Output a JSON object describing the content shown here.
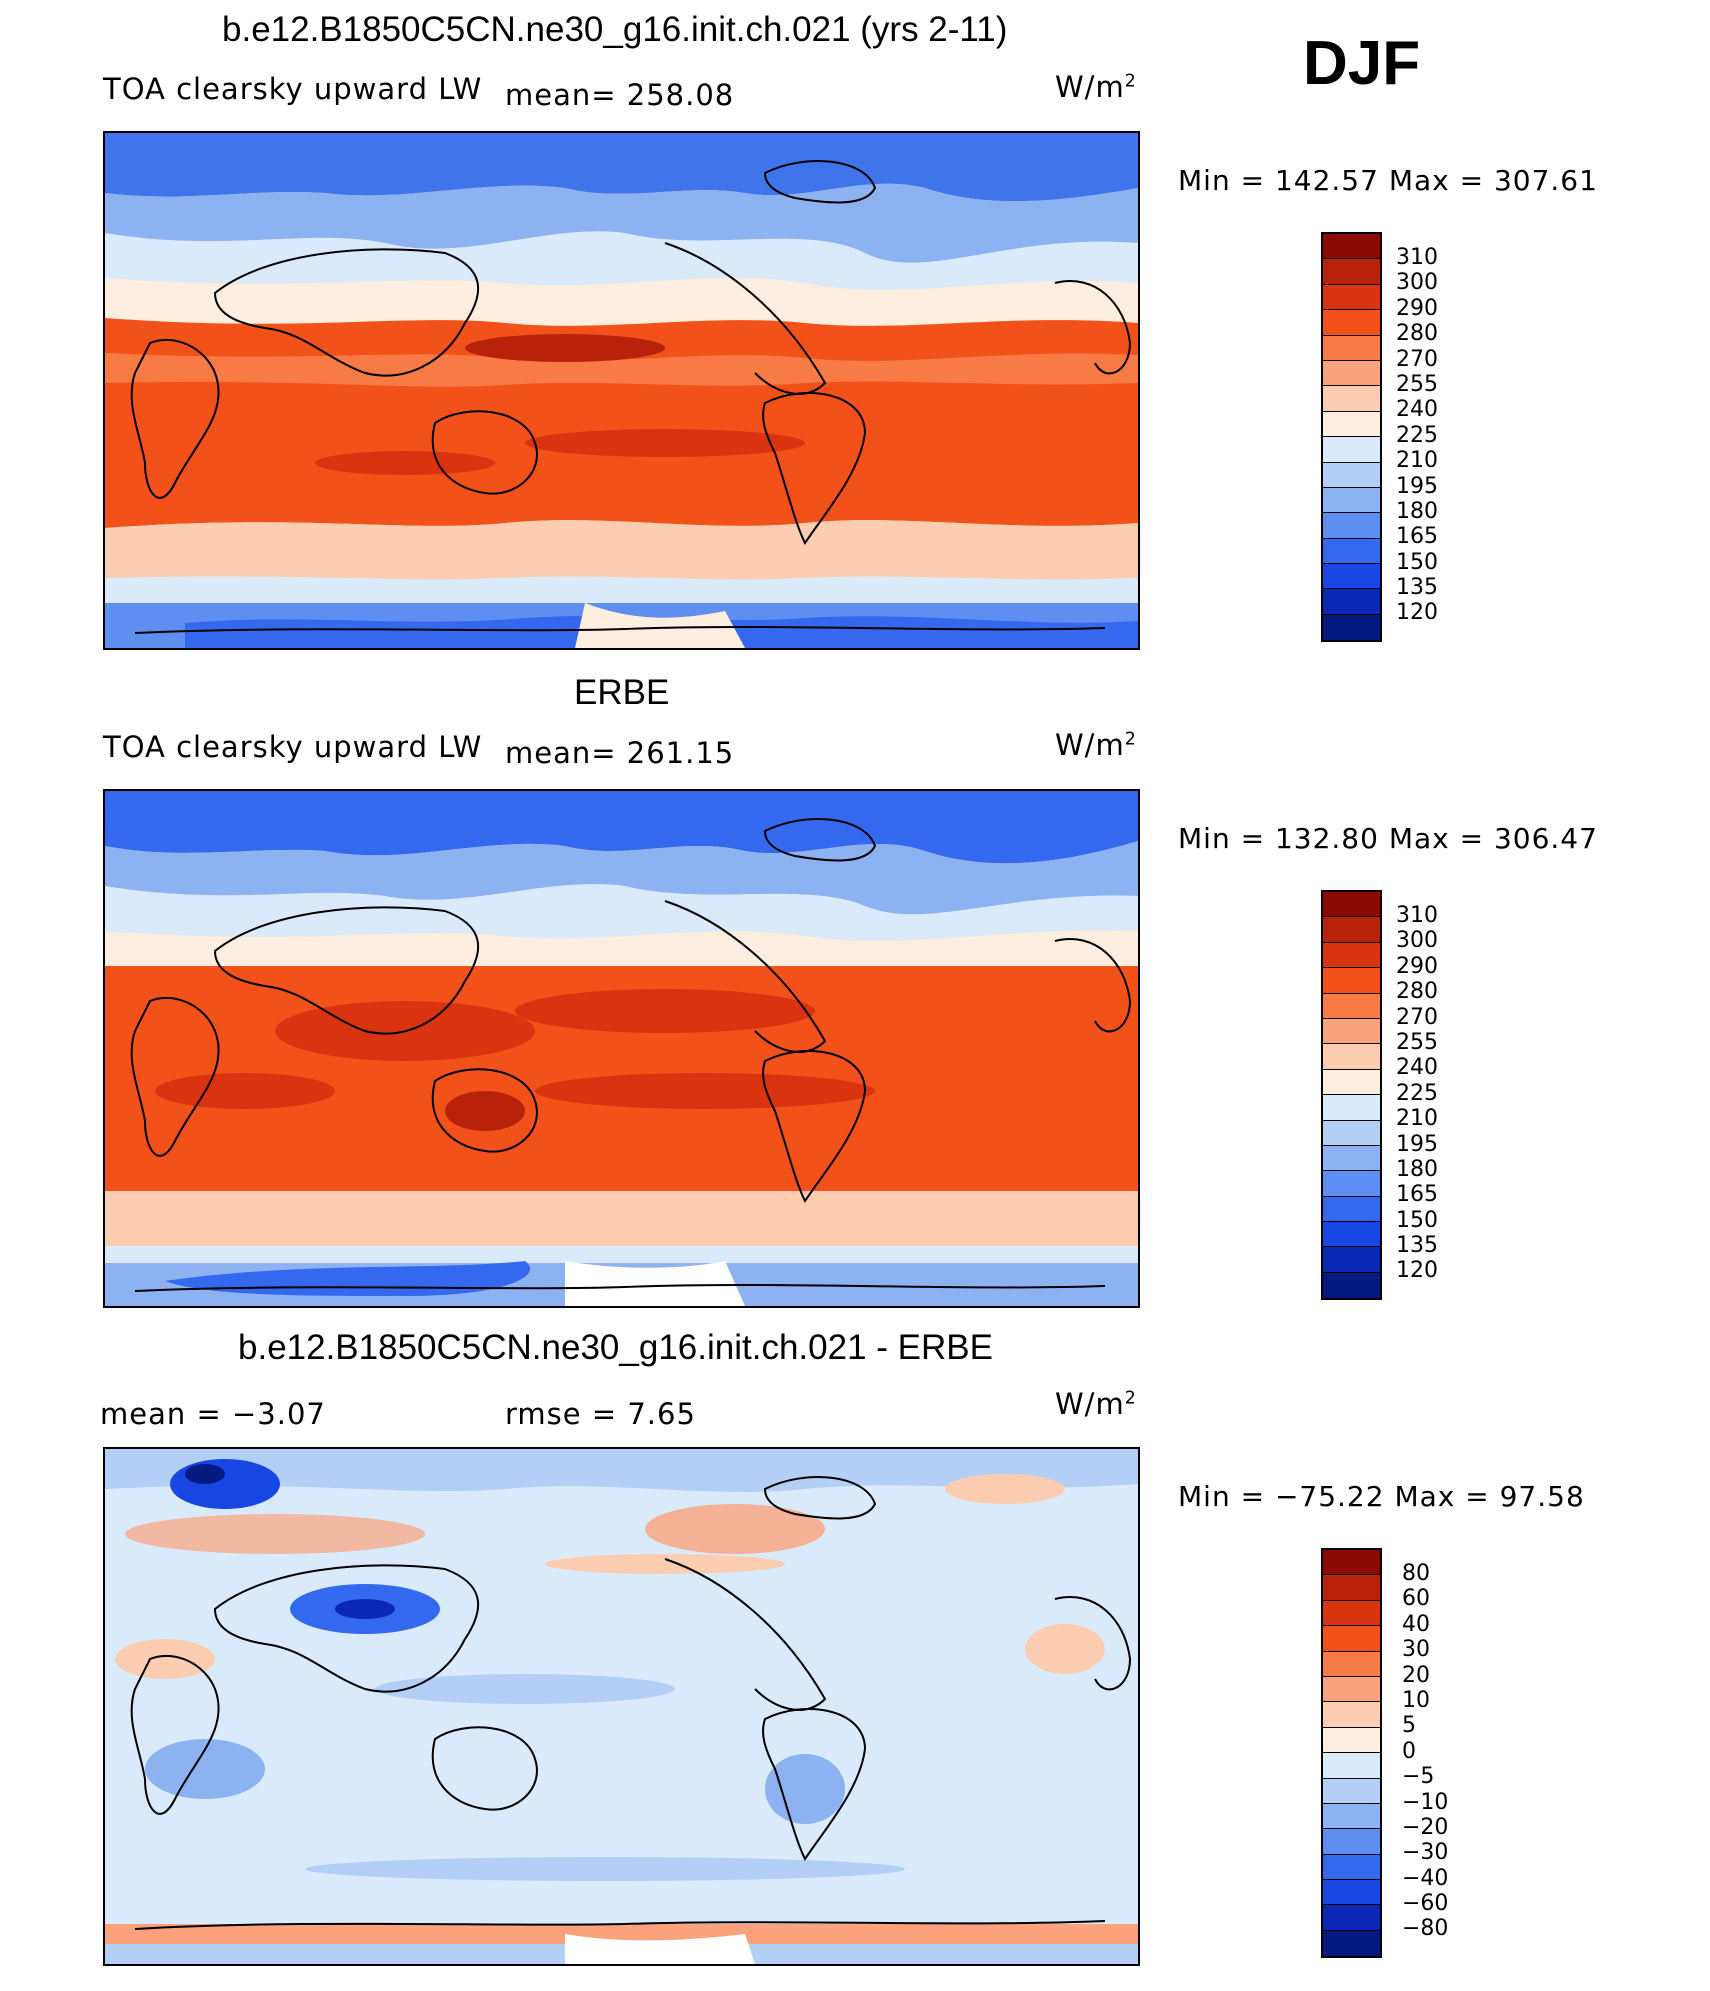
{
  "season": "DJF",
  "unit": "W/m",
  "unit_exp": "2",
  "panels": [
    {
      "title": "b.e12.B1850C5CN.ne30_g16.init.ch.021 (yrs 2-11)",
      "left_label": "TOA clearsky upward LW",
      "stat": "mean=  258.08",
      "minmax": "Min  =  142.57  Max  =  307.61",
      "levels": [
        "310",
        "300",
        "290",
        "280",
        "270",
        "255",
        "240",
        "225",
        "210",
        "195",
        "180",
        "165",
        "150",
        "135",
        "120"
      ]
    },
    {
      "title": "ERBE",
      "left_label": "TOA clearsky upward LW",
      "stat": "mean=  261.15",
      "minmax": "Min  =  132.80  Max  =  306.47",
      "levels": [
        "310",
        "300",
        "290",
        "280",
        "270",
        "255",
        "240",
        "225",
        "210",
        "195",
        "180",
        "165",
        "150",
        "135",
        "120"
      ]
    },
    {
      "title": "b.e12.B1850C5CN.ne30_g16.init.ch.021 - ERBE",
      "left_label": "mean  =    −3.07",
      "stat": "rmse  =     7.65",
      "minmax": "Min  =  −75.22  Max  =    97.58",
      "levels": [
        "80",
        "60",
        "40",
        "30",
        "20",
        "10",
        "5",
        "0",
        "−5",
        "−10",
        "−20",
        "−30",
        "−40",
        "−60",
        "−80"
      ]
    }
  ],
  "colors": {
    "colorbar": [
      "#8b0a05",
      "#b9220a",
      "#d9340f",
      "#f2521a",
      "#f87a45",
      "#fba27c",
      "#fdcdb1",
      "#fdeedf",
      "#d9eafb",
      "#b3cff5",
      "#8cb2f1",
      "#5e8ff0",
      "#3468ee",
      "#1846e2",
      "#0a28b5",
      "#041a82"
    ],
    "coast": "#000000"
  }
}
